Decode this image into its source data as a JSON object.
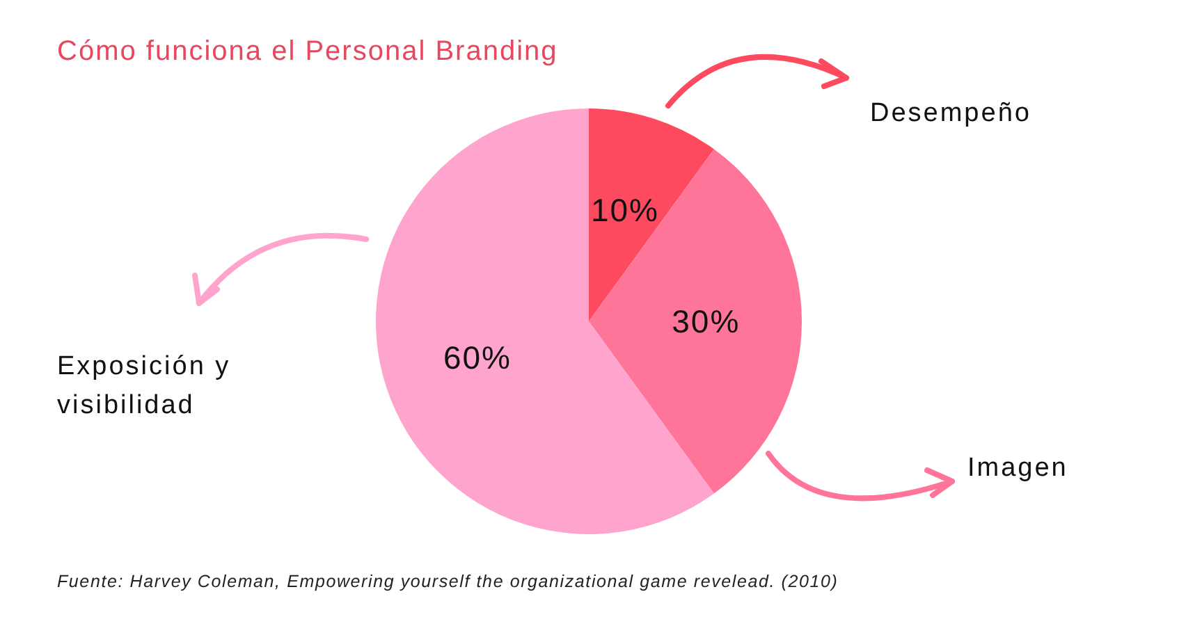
{
  "chart_data": {
    "type": "pie",
    "title": "Cómo funciona el Personal Branding",
    "categories": [
      "Desempeño",
      "Imagen",
      "Exposición y visibilidad"
    ],
    "values": [
      10,
      30,
      60
    ],
    "colors": [
      "#fe4a5f",
      "#ff7599",
      "#ffa4cc"
    ],
    "value_labels": [
      "10%",
      "30%",
      "60%"
    ],
    "annotations": [
      "Fuente: Harvey Coleman, Empowering yourself the organizational game revelead. (2010)"
    ]
  }
}
